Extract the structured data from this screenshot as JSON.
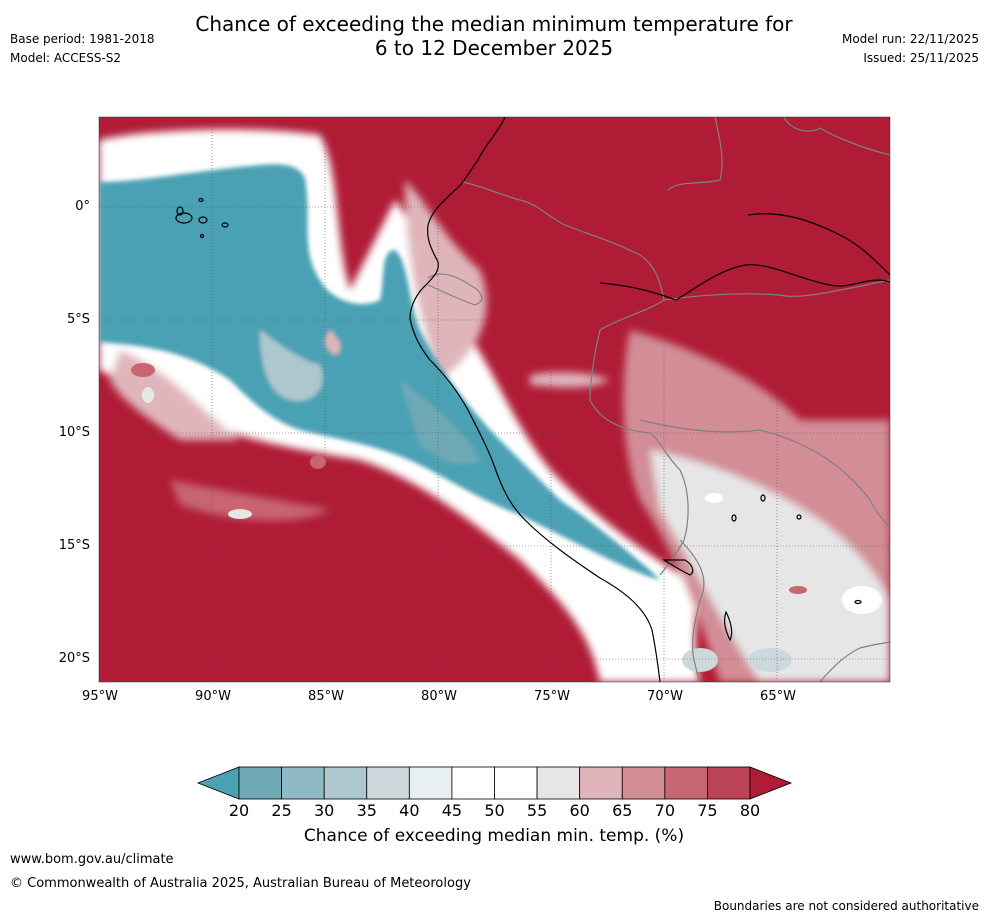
{
  "header": {
    "title_line1": "Chance of exceeding the median minimum temperature for",
    "title_line2": "6 to 12 December 2025",
    "base_period": "Base period: 1981-2018",
    "model": "Model: ACCESS-S2",
    "model_run": "Model run: 22/11/2025",
    "issued": "Issued: 25/11/2025"
  },
  "map": {
    "lat_labels": [
      "0°",
      "5°S",
      "10°S",
      "15°S",
      "20°S"
    ],
    "lon_labels": [
      "95°W",
      "90°W",
      "85°W",
      "80°W",
      "75°W",
      "70°W",
      "65°W"
    ],
    "colors": {
      "high": "#b01c36",
      "low": "#4ba1b4",
      "coast": "#000000",
      "border": "#808080"
    }
  },
  "colorbar": {
    "ticks": [
      "20",
      "25",
      "30",
      "35",
      "40",
      "45",
      "50",
      "55",
      "60",
      "65",
      "70",
      "75",
      "80"
    ],
    "bin_colors": [
      "#4ba1b4",
      "#6fa9b6",
      "#8fb9c4",
      "#adc7ce",
      "#ccd8db",
      "#e8eff1",
      "#ffffff",
      "#ffffff",
      "#e6e6e6",
      "#dfb5bb",
      "#d28d96",
      "#c76571",
      "#bc4356",
      "#b01c36"
    ],
    "label": "Chance of exceeding median min. temp. (%)"
  },
  "footer": {
    "website": "www.bom.gov.au/climate",
    "copyright": "© Commonwealth of Australia 2025, Australian Bureau of Meteorology",
    "disclaimer": "Boundaries are not considered authoritative"
  }
}
